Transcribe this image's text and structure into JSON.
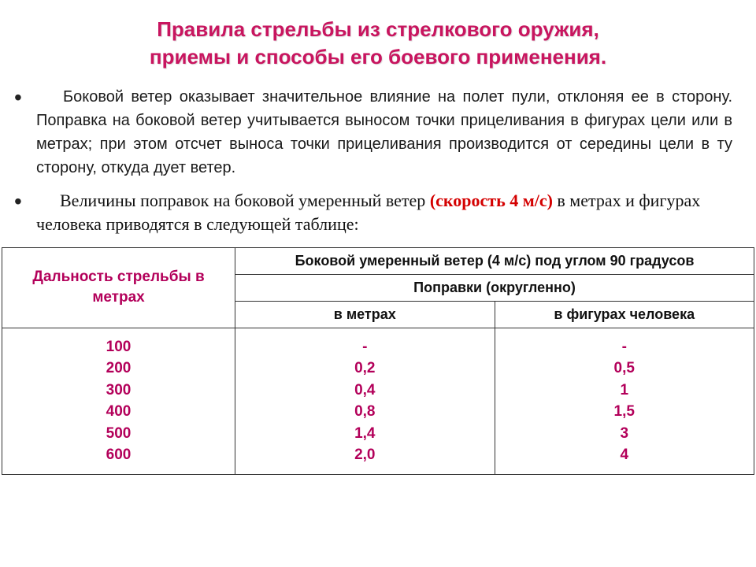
{
  "title": {
    "line1": "Правила стрельбы из стрелкового оружия,",
    "line2": "приемы и способы его боевого применения.",
    "color": "#c8155f",
    "fontsize": 26
  },
  "paragraph1": {
    "text": "Боковой ветер оказывает значительное влияние на полет пули, отклоняя ее в сторону. Поправка на боковой ветер учитывается выносом точки прицеливания в фигурах цели или в метрах; при этом отсчет выноса точки прицеливания производится от середины цели в ту сторону, откуда дует ветер.",
    "fontsize": 20,
    "font": "Arial",
    "color": "#1a1a1a"
  },
  "paragraph2": {
    "prefix": "Величины поправок на боковой умеренный ветер ",
    "highlight": "(скорость 4 м/с)",
    "suffix": " в метрах и фигурах человека приводятся в следующей таблице:",
    "highlight_color": "#d40000",
    "fontsize": 22,
    "font": "Times New Roman"
  },
  "table": {
    "header_left": "Дальность стрельбы в метрах",
    "header_top": "Боковой умеренный ветер (4 м/с) под углом 90 градусов",
    "header_mid": "Поправки (округленно)",
    "col_meters": "в метрах",
    "col_figures": "в фигурах человека",
    "header_color": "#111",
    "data_color": "#b3005a",
    "border_color": "#333",
    "col_widths": [
      "31%",
      "34.5%",
      "34.5%"
    ],
    "rows": [
      {
        "distance": "100",
        "meters": "-",
        "figures": "-"
      },
      {
        "distance": "200",
        "meters": "0,2",
        "figures": "0,5"
      },
      {
        "distance": "300",
        "meters": "0,4",
        "figures": "1"
      },
      {
        "distance": "400",
        "meters": "0,8",
        "figures": "1,5"
      },
      {
        "distance": "500",
        "meters": "1,4",
        "figures": "3"
      },
      {
        "distance": "600",
        "meters": "2,0",
        "figures": "4"
      }
    ]
  }
}
